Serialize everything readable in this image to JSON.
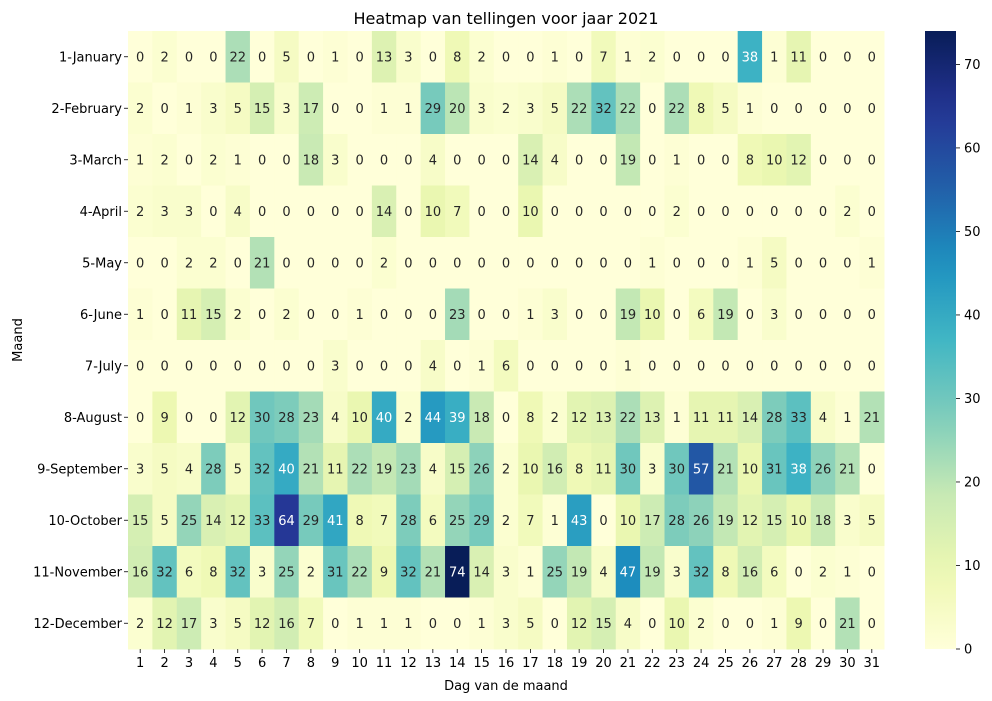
{
  "chart_data": {
    "type": "heatmap",
    "title": "Heatmap van tellingen voor jaar 2021",
    "xlabel": "Dag van de maand",
    "ylabel": "Maand",
    "x": [
      "1",
      "2",
      "3",
      "4",
      "5",
      "6",
      "7",
      "8",
      "9",
      "10",
      "11",
      "12",
      "13",
      "14",
      "15",
      "16",
      "17",
      "18",
      "19",
      "20",
      "21",
      "22",
      "23",
      "24",
      "25",
      "26",
      "27",
      "28",
      "29",
      "30",
      "31"
    ],
    "y": [
      "1-January",
      "2-February",
      "3-March",
      "4-April",
      "5-May",
      "6-June",
      "7-July",
      "8-August",
      "9-September",
      "10-October",
      "11-November",
      "12-December"
    ],
    "values": [
      [
        0,
        2,
        0,
        0,
        22,
        0,
        5,
        0,
        1,
        0,
        13,
        3,
        0,
        8,
        2,
        0,
        0,
        1,
        0,
        7,
        1,
        2,
        0,
        0,
        0,
        38,
        1,
        11,
        0,
        0,
        0
      ],
      [
        2,
        0,
        1,
        3,
        5,
        15,
        3,
        17,
        0,
        0,
        1,
        1,
        29,
        20,
        3,
        2,
        3,
        5,
        22,
        32,
        22,
        0,
        22,
        8,
        5,
        1,
        0,
        0,
        0,
        0,
        0
      ],
      [
        1,
        2,
        0,
        2,
        1,
        0,
        0,
        18,
        3,
        0,
        0,
        0,
        4,
        0,
        0,
        0,
        14,
        4,
        0,
        0,
        19,
        0,
        1,
        0,
        0,
        8,
        10,
        12,
        0,
        0,
        0
      ],
      [
        2,
        3,
        3,
        0,
        4,
        0,
        0,
        0,
        0,
        0,
        14,
        0,
        10,
        7,
        0,
        0,
        10,
        0,
        0,
        0,
        0,
        0,
        2,
        0,
        0,
        0,
        0,
        0,
        0,
        2,
        0
      ],
      [
        0,
        0,
        2,
        2,
        0,
        21,
        0,
        0,
        0,
        0,
        2,
        0,
        0,
        0,
        0,
        0,
        0,
        0,
        0,
        0,
        0,
        1,
        0,
        0,
        0,
        1,
        5,
        0,
        0,
        0,
        1
      ],
      [
        1,
        0,
        11,
        15,
        2,
        0,
        2,
        0,
        0,
        1,
        0,
        0,
        0,
        23,
        0,
        0,
        1,
        3,
        0,
        0,
        19,
        10,
        0,
        6,
        19,
        0,
        3,
        0,
        0,
        0,
        0
      ],
      [
        0,
        0,
        0,
        0,
        0,
        0,
        0,
        0,
        3,
        0,
        0,
        0,
        4,
        0,
        1,
        6,
        0,
        0,
        0,
        0,
        1,
        0,
        0,
        0,
        0,
        0,
        0,
        0,
        0,
        0,
        0
      ],
      [
        0,
        9,
        0,
        0,
        12,
        30,
        28,
        23,
        4,
        10,
        40,
        2,
        44,
        39,
        18,
        0,
        8,
        2,
        12,
        13,
        22,
        13,
        1,
        11,
        11,
        14,
        28,
        33,
        4,
        1,
        21
      ],
      [
        3,
        5,
        4,
        28,
        5,
        32,
        40,
        21,
        11,
        22,
        19,
        23,
        4,
        15,
        26,
        2,
        10,
        16,
        8,
        11,
        30,
        3,
        30,
        57,
        21,
        10,
        31,
        38,
        26,
        21,
        0
      ],
      [
        15,
        5,
        25,
        14,
        12,
        33,
        64,
        29,
        41,
        8,
        7,
        28,
        6,
        25,
        29,
        2,
        7,
        1,
        43,
        0,
        10,
        17,
        28,
        26,
        19,
        12,
        15,
        10,
        18,
        3,
        5
      ],
      [
        16,
        32,
        6,
        8,
        32,
        3,
        25,
        2,
        31,
        22,
        9,
        32,
        21,
        74,
        14,
        3,
        1,
        25,
        19,
        4,
        47,
        19,
        3,
        32,
        8,
        16,
        6,
        0,
        2,
        1,
        0
      ],
      [
        2,
        12,
        17,
        3,
        5,
        12,
        16,
        7,
        0,
        1,
        1,
        1,
        0,
        0,
        1,
        3,
        5,
        0,
        12,
        15,
        4,
        0,
        10,
        2,
        0,
        0,
        1,
        9,
        0,
        21,
        0
      ]
    ],
    "vmin": 0,
    "vmax": 74,
    "colorscale": "YlGnBu",
    "colorbar_ticks": [
      0,
      10,
      20,
      30,
      40,
      50,
      60,
      70
    ],
    "annotated": true,
    "grid": false
  }
}
